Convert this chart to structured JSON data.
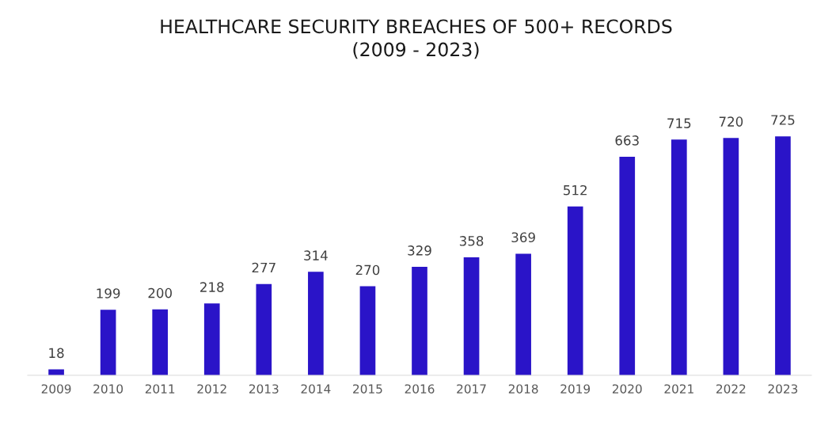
{
  "chart_data": {
    "type": "bar",
    "title": "HEALTHCARE SECURITY BREACHES OF 500+ RECORDS\n(2009 - 2023)",
    "categories": [
      "2009",
      "2010",
      "2011",
      "2012",
      "2013",
      "2014",
      "2015",
      "2016",
      "2017",
      "2018",
      "2019",
      "2020",
      "2021",
      "2022",
      "2023"
    ],
    "values": [
      18,
      199,
      200,
      218,
      277,
      314,
      270,
      329,
      358,
      369,
      512,
      663,
      715,
      720,
      725
    ],
    "color": "#2a14c8",
    "data_labels": true,
    "grid": false,
    "legend": false,
    "tick_labels": "x"
  }
}
